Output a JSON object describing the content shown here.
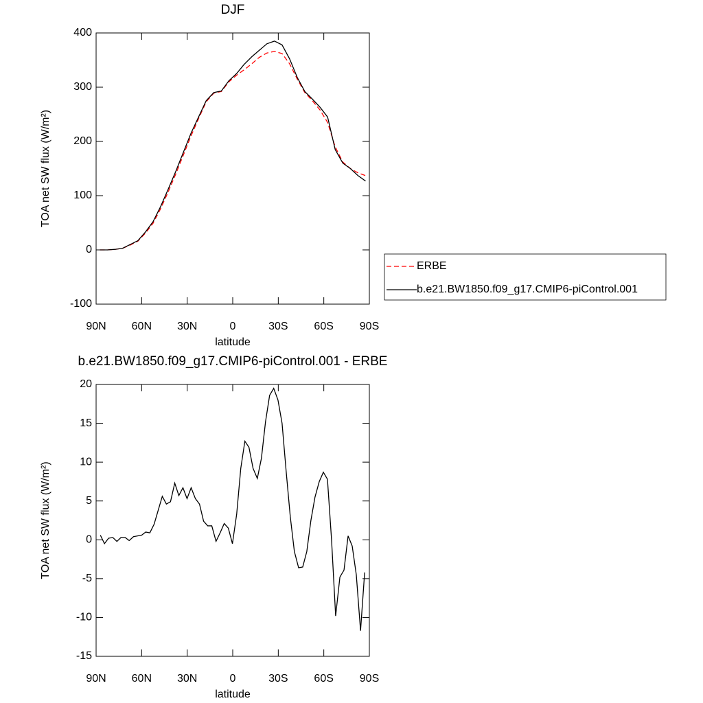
{
  "chart_data": [
    {
      "type": "line",
      "title": "DJF",
      "x_label": "latitude",
      "y_label": "TOA net SW flux (W/m²)",
      "x": [
        87.5,
        82.5,
        77.5,
        72.5,
        67.5,
        62.5,
        57.5,
        52.5,
        47.5,
        42.5,
        37.5,
        32.5,
        27.5,
        22.5,
        17.5,
        12.5,
        7.5,
        2.5,
        -2.5,
        -7.5,
        -12.5,
        -17.5,
        -22.5,
        -27.5,
        -32.5,
        -37.5,
        -42.5,
        -47.5,
        -52.5,
        -57.5,
        -62.5,
        -67.5,
        -72.5,
        -77.5,
        -82.5,
        -87.5
      ],
      "series": [
        {
          "name": "ERBE",
          "color": "#ff0000",
          "dashed": true,
          "values": [
            0,
            0,
            1,
            3,
            9,
            16,
            31,
            49,
            76,
            107,
            140,
            175,
            210,
            242,
            273,
            289,
            292,
            310,
            322,
            332,
            343,
            355,
            363,
            366,
            362,
            343,
            315,
            290,
            275,
            258,
            235,
            190,
            162,
            150,
            142,
            137
          ]
        },
        {
          "name": "b.e21.BW1850.f09_g17.CMIP6-piControl.001",
          "color": "#000000",
          "dashed": false,
          "values": [
            0,
            0,
            1,
            3,
            10,
            17,
            33,
            52,
            80,
            112,
            145,
            180,
            215,
            245,
            275,
            290,
            293,
            312,
            325,
            342,
            356,
            368,
            380,
            385,
            378,
            352,
            318,
            292,
            278,
            263,
            245,
            185,
            160,
            150,
            137,
            127
          ]
        }
      ],
      "xlim": [
        90,
        -90
      ],
      "xticks": [
        {
          "value": 90,
          "label": "90N"
        },
        {
          "value": 60,
          "label": "60N"
        },
        {
          "value": 30,
          "label": "30N"
        },
        0,
        {
          "value": -30,
          "label": "30S"
        },
        {
          "value": -60,
          "label": "60S"
        },
        {
          "value": -90,
          "label": "90S"
        }
      ],
      "ylim": [
        -100,
        400
      ],
      "yticks": [
        -100,
        0,
        100,
        200,
        300,
        400
      ],
      "legend": "right"
    },
    {
      "type": "line",
      "title": "b.e21.BW1850.f09_g17.CMIP6-piControl.001 - ERBE",
      "x_label": "latitude",
      "y_label": "TOA net SW flux (W/m²)",
      "x": [
        87.2,
        84.5,
        81.8,
        79.0,
        76.3,
        73.6,
        70.9,
        68.2,
        65.4,
        62.7,
        60.0,
        57.3,
        54.6,
        51.8,
        49.1,
        46.4,
        43.7,
        41.0,
        38.2,
        35.5,
        32.8,
        30.1,
        27.4,
        24.6,
        21.9,
        19.2,
        16.5,
        13.8,
        11.0,
        8.3,
        5.6,
        2.9,
        0.2,
        -2.6,
        -5.3,
        -8.0,
        -10.7,
        -13.4,
        -16.2,
        -18.9,
        -21.6,
        -24.3,
        -27.0,
        -29.8,
        -32.5,
        -35.2,
        -37.9,
        -40.6,
        -43.4,
        -46.1,
        -48.8,
        -51.5,
        -54.2,
        -57.0,
        -59.7,
        -62.4,
        -65.1,
        -67.8,
        -70.6,
        -73.3,
        -76.0,
        -78.7,
        -81.4,
        -84.2,
        -86.9
      ],
      "series": [
        {
          "color": "#000000",
          "dashed": false,
          "values": [
            0.6,
            -0.5,
            0.2,
            0.3,
            -0.2,
            0.3,
            0.3,
            -0.1,
            0.4,
            0.5,
            0.6,
            1.0,
            0.9,
            2.0,
            3.8,
            5.6,
            4.6,
            4.9,
            7.3,
            5.7,
            6.7,
            5.3,
            6.7,
            5.3,
            4.6,
            2.4,
            1.8,
            1.8,
            -0.2,
            0.9,
            2.1,
            1.5,
            -0.5,
            3.3,
            9.2,
            12.7,
            11.9,
            9.2,
            7.9,
            10.5,
            15.2,
            18.6,
            19.5,
            18.0,
            15.0,
            8.8,
            3.0,
            -1.5,
            -3.6,
            -3.5,
            -1.5,
            2.5,
            5.5,
            7.5,
            8.7,
            7.8,
            0,
            -9.8,
            -4.8,
            -3.9,
            0.5,
            -0.8,
            -4.5,
            -11.7,
            -4.2
          ]
        }
      ],
      "xlim": [
        90,
        -90
      ],
      "xticks": [
        {
          "value": 90,
          "label": "90N"
        },
        {
          "value": 60,
          "label": "60N"
        },
        {
          "value": 30,
          "label": "30N"
        },
        0,
        {
          "value": -30,
          "label": "30S"
        },
        {
          "value": -60,
          "label": "60S"
        },
        {
          "value": -90,
          "label": "90S"
        }
      ],
      "ylim": [
        -15,
        20
      ],
      "yticks": [
        -15,
        -10,
        -5,
        0,
        5,
        10,
        15,
        20
      ]
    }
  ]
}
